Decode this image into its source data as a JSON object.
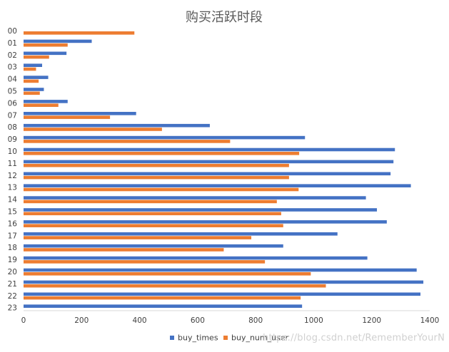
{
  "chart_data": {
    "type": "bar",
    "orientation": "horizontal",
    "title": "购买活跃时段",
    "xlabel": "",
    "ylabel": "",
    "xlim": [
      0,
      1400
    ],
    "x_ticks": [
      "0",
      "200",
      "400",
      "600",
      "800",
      "1000",
      "1200",
      "1400"
    ],
    "grid": false,
    "legend_position": "bottom",
    "categories": [
      "00",
      "01",
      "02",
      "03",
      "04",
      "05",
      "06",
      "07",
      "08",
      "09",
      "10",
      "11",
      "12",
      "13",
      "14",
      "15",
      "16",
      "17",
      "18",
      "19",
      "20",
      "21",
      "22",
      "23"
    ],
    "series": [
      {
        "name": "buy_times",
        "color": "#4472c4",
        "values": [
          0,
          235,
          148,
          64,
          85,
          70,
          152,
          388,
          642,
          970,
          1280,
          1275,
          1265,
          1335,
          1180,
          1218,
          1252,
          1082,
          895,
          1185,
          1355,
          1378,
          1368,
          960
        ]
      },
      {
        "name": "buy_num_user",
        "color": "#ed7d31",
        "values": [
          382,
          152,
          88,
          43,
          52,
          56,
          120,
          298,
          477,
          712,
          950,
          915,
          915,
          948,
          873,
          888,
          895,
          785,
          690,
          832,
          990,
          1042,
          955,
          0
        ]
      }
    ]
  },
  "watermark": "https://blog.csdn.net/RememberYourN"
}
